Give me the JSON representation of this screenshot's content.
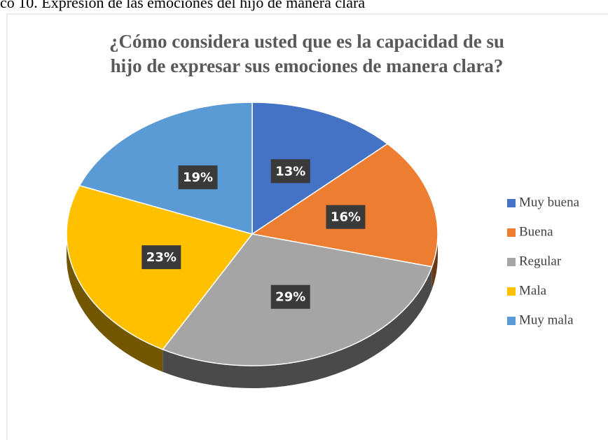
{
  "caption": "co 10. Expresión de las emociones del hijo de manera clara",
  "chart_data": {
    "type": "pie",
    "title": [
      "¿Cómo considera usted que es la capacidad de su",
      "hijo de expresar sus emociones de manera clara?"
    ],
    "categories": [
      "Muy buena",
      "Buena",
      "Regular",
      "Mala",
      "Muy mala"
    ],
    "values": [
      13,
      16,
      29,
      23,
      19
    ],
    "value_labels": [
      "13%",
      "16%",
      "29%",
      "23%",
      "19%"
    ],
    "colors": [
      "#4472c4",
      "#ed7d31",
      "#a5a5a5",
      "#ffc000",
      "#5b9bd5"
    ],
    "legend": "right"
  }
}
